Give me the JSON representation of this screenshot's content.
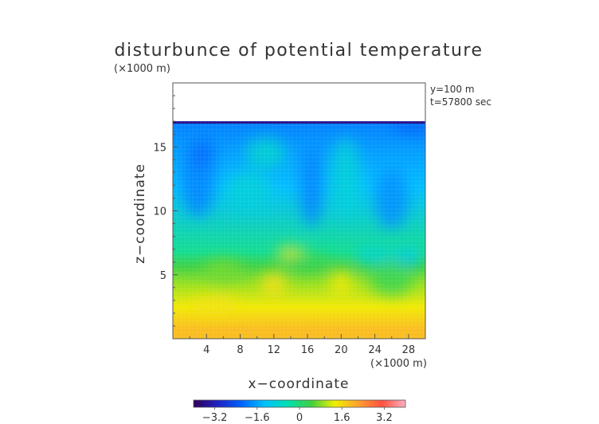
{
  "chart_data": {
    "type": "heatmap",
    "title": "disturbunce of potential temperature",
    "x_unit_note": "(×1000 m)",
    "z_unit_note": "(×1000 m)",
    "xlabel": "x−coordinate",
    "ylabel": "z−coordinate",
    "annotations": [
      "y=100 m",
      "t=57800 sec"
    ],
    "xlim": [
      0,
      30
    ],
    "ylim": [
      0,
      20
    ],
    "x_ticks": [
      4,
      8,
      12,
      16,
      20,
      24,
      28
    ],
    "x_tick_labels": [
      "4",
      "8",
      "12",
      "16",
      "20",
      "24",
      "28"
    ],
    "y_ticks": [
      5,
      10,
      15
    ],
    "y_tick_labels": [
      "5",
      "10",
      "15"
    ],
    "colorbar": {
      "range": [
        -4,
        4
      ],
      "ticks": [
        -3.2,
        -1.6,
        0,
        1.6,
        3.2
      ],
      "tick_labels": [
        "−3.2",
        "−1.6",
        "0",
        "1.6",
        "3.2"
      ],
      "colormap": [
        "#30005a",
        "#2020c0",
        "#0060ff",
        "#00c0ff",
        "#00e0b0",
        "#40d040",
        "#f0f000",
        "#ffa030",
        "#ff5040",
        "#ffb0c0"
      ]
    },
    "domain_top_z": 17,
    "bands": [
      {
        "z_from": 0,
        "z_to": 1.5,
        "value": 1.9
      },
      {
        "z_from": 1.5,
        "z_to": 3.5,
        "value": 1.4
      },
      {
        "z_from": 3.5,
        "z_to": 5,
        "value": 0.9
      },
      {
        "z_from": 5,
        "z_to": 6.3,
        "value": 0.4
      },
      {
        "z_from": 6.3,
        "z_to": 7.3,
        "value": -0.2
      },
      {
        "z_from": 7.3,
        "z_to": 16.5,
        "value": -1.35
      },
      {
        "z_from": 16.5,
        "z_to": 17,
        "value": -1.9
      }
    ]
  }
}
